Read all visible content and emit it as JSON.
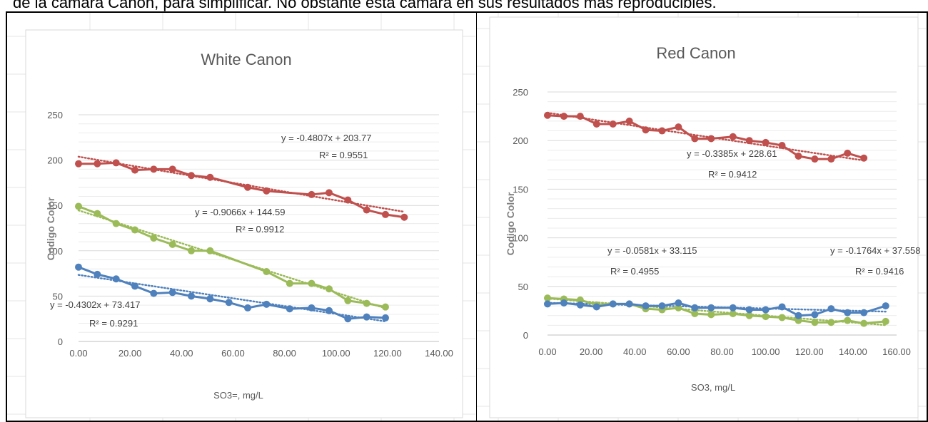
{
  "caption": "de la cámara Canon, para simplificar. No obstante esta cámara en sus resultados más reproducibles.",
  "chart_data": [
    {
      "type": "line",
      "title": "White Canon",
      "xlabel": "SO3=, mg/L",
      "ylabel": "Codigo Color",
      "xlim": [
        0,
        140
      ],
      "ylim": [
        0,
        250
      ],
      "x_ticks": [
        "0.00",
        "20.00",
        "40.00",
        "60.00",
        "80.00",
        "100.00",
        "120.00",
        "140.00"
      ],
      "y_ticks": [
        "0",
        "50",
        "100",
        "150",
        "200",
        "250"
      ],
      "gridlines": "horizontal",
      "trendline_style": "dotted",
      "series": [
        {
          "color": "#c0504d",
          "x": [
            0,
            7.3,
            14.6,
            21.9,
            29.2,
            36.5,
            43.8,
            51.1,
            65.7,
            73,
            90.5,
            97.3,
            104.6,
            111.9,
            119.2,
            126.5
          ],
          "y": [
            196,
            196,
            197,
            189,
            190,
            190,
            183,
            181,
            170,
            166,
            162,
            164,
            156,
            145,
            140,
            137
          ],
          "trendline": {
            "slope": -0.4807,
            "intercept": 203.77,
            "x_range": [
              0,
              126.5
            ]
          }
        },
        {
          "color": "#9bbb59",
          "x": [
            0,
            7.3,
            14.6,
            21.9,
            29.2,
            36.5,
            43.8,
            51.1,
            73,
            82,
            90.5,
            97.3,
            104.6,
            111.9,
            119.2
          ],
          "y": [
            149,
            141,
            130,
            123,
            114,
            107,
            100,
            100,
            77,
            64,
            64,
            58,
            45,
            42,
            38
          ],
          "trendline": {
            "slope": -0.9066,
            "intercept": 144.59,
            "x_range": [
              0,
              119.2
            ]
          }
        },
        {
          "color": "#4f81bd",
          "x": [
            0,
            7.3,
            14.6,
            21.9,
            29.2,
            36.5,
            43.8,
            51.1,
            58.4,
            65.7,
            73,
            82,
            90.5,
            97.3,
            104.6,
            111.9,
            119.2
          ],
          "y": [
            82,
            74,
            69,
            61,
            53,
            54,
            50,
            47,
            43,
            37,
            41,
            36,
            37,
            34,
            25,
            27,
            26
          ],
          "trendline": {
            "slope": -0.4302,
            "intercept": 73.417,
            "x_range": [
              0,
              119.2
            ]
          }
        }
      ],
      "annotations": [
        {
          "equation": "y = -0.4807x + 203.77",
          "r2": "R² = 0.9551",
          "series": 0
        },
        {
          "equation": "y = -0.9066x + 144.59",
          "r2": "R² = 0.9912",
          "series": 1
        },
        {
          "equation": "y = -0.4302x + 73.417",
          "r2": "R² = 0.9291",
          "series": 2
        }
      ]
    },
    {
      "type": "line",
      "title": "Red Canon",
      "xlabel": "SO3, mg/L",
      "ylabel": "Codigo Color",
      "xlim": [
        0,
        160
      ],
      "ylim": [
        0,
        250
      ],
      "x_ticks": [
        "0.00",
        "20.00",
        "40.00",
        "60.00",
        "80.00",
        "100.00",
        "120.00",
        "140.00",
        "160.00"
      ],
      "y_ticks": [
        "0",
        "50",
        "100",
        "150",
        "200",
        "250"
      ],
      "gridlines": "horizontal",
      "trendline_style": "dotted",
      "series": [
        {
          "color": "#c0504d",
          "x": [
            0,
            7.5,
            15,
            22.5,
            30,
            37.5,
            45,
            52.5,
            60,
            67.5,
            75,
            85,
            92.5,
            100,
            107.5,
            115,
            122.5,
            130,
            137.5,
            145
          ],
          "y": [
            226,
            225,
            225,
            217,
            217,
            220,
            211,
            210,
            214,
            202,
            202,
            204,
            200,
            198,
            195,
            184,
            181,
            181,
            187,
            182
          ],
          "trendline": {
            "slope": -0.3385,
            "intercept": 228.61,
            "x_range": [
              0,
              145
            ]
          }
        },
        {
          "color": "#9bbb59",
          "x": [
            0,
            7.5,
            15,
            22.5,
            30,
            37.5,
            45,
            52.5,
            60,
            67.5,
            75,
            85,
            92.5,
            100,
            107.5,
            115,
            122.5,
            130,
            137.5,
            145,
            155
          ],
          "y": [
            38,
            37,
            36,
            31,
            32,
            32,
            27,
            26,
            28,
            22,
            21,
            22,
            20,
            19,
            18,
            15,
            13,
            13,
            15,
            12,
            14
          ],
          "trendline": {
            "slope": -0.1764,
            "intercept": 37.558,
            "x_range": [
              0,
              155
            ]
          }
        },
        {
          "color": "#4f81bd",
          "x": [
            0,
            7.5,
            15,
            22.5,
            30,
            37.5,
            45,
            52.5,
            60,
            67.5,
            75,
            85,
            92.5,
            100,
            107.5,
            115,
            122.5,
            130,
            137.5,
            145,
            155
          ],
          "y": [
            32,
            33,
            31,
            29,
            32,
            32,
            30,
            30,
            33,
            28,
            28,
            28,
            26,
            26,
            29,
            20,
            21,
            27,
            23,
            23,
            30
          ],
          "trendline": {
            "slope": -0.0581,
            "intercept": 33.115,
            "x_range": [
              0,
              155
            ]
          }
        }
      ],
      "annotations": [
        {
          "equation": "y = -0.3385x + 228.61",
          "r2": "R² = 0.9412",
          "series": 0
        },
        {
          "equation": "y = -0.0581x + 33.115",
          "r2": "R² = 0.4955",
          "series": 2
        },
        {
          "equation": "y = -0.1764x + 37.558",
          "r2": "R² = 0.9416",
          "series": 1
        }
      ]
    }
  ]
}
